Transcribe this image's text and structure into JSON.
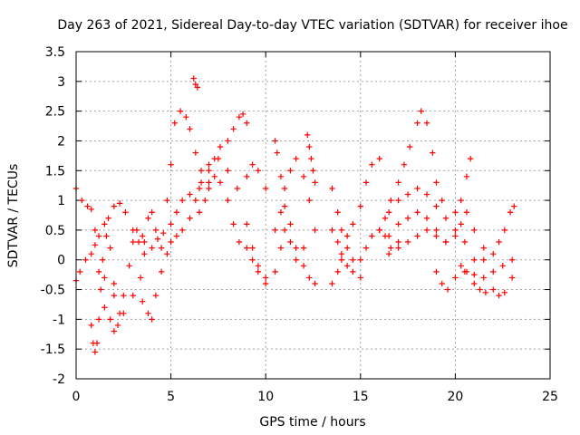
{
  "chart_data": {
    "type": "scatter",
    "title": "Day 263 of 2021, Sidereal Day-to-day VTEC variation (SDTVAR) for receiver ihoe",
    "xlabel": "GPS time / hours",
    "ylabel": "SDTVAR / TECUs",
    "xlim": [
      0,
      25
    ],
    "ylim": [
      -2,
      3.5
    ],
    "xticks": [
      0,
      5,
      10,
      15,
      20,
      25
    ],
    "yticks": [
      -2,
      -1.5,
      -1,
      -0.5,
      0,
      0.5,
      1,
      1.5,
      2,
      2.5,
      3,
      3.5
    ],
    "grid": true,
    "marker": "+",
    "color": "#ff0000",
    "series": [
      {
        "name": "s1",
        "x": [
          0.0,
          0.3,
          0.6,
          0.8,
          1.0,
          1.2,
          1.5,
          1.8,
          2.0,
          2.2,
          2.5,
          2.8,
          3.0,
          3.2,
          3.5
        ],
        "y": [
          1.2,
          1.0,
          0.9,
          0.85,
          0.5,
          -0.2,
          -0.8,
          -1.0,
          -1.2,
          -1.1,
          -0.6,
          -0.1,
          0.3,
          0.5,
          0.4
        ]
      },
      {
        "name": "s2",
        "x": [
          0.0,
          0.2,
          0.5,
          0.8,
          1.0,
          1.2,
          1.5,
          1.7,
          2.0,
          2.3,
          2.6,
          3.0,
          3.3,
          3.6,
          4.0,
          4.3,
          4.6,
          5.0,
          5.3,
          5.6,
          6.0,
          6.5,
          7.0
        ],
        "y": [
          -0.35,
          -0.2,
          0.0,
          0.1,
          0.25,
          0.4,
          0.6,
          0.7,
          0.9,
          0.95,
          0.8,
          0.5,
          0.3,
          0.1,
          0.2,
          0.35,
          0.45,
          0.6,
          0.8,
          1.0,
          1.1,
          1.2,
          1.3
        ]
      },
      {
        "name": "s3",
        "x": [
          0.8,
          0.9,
          1.0,
          1.1,
          1.2,
          1.3,
          1.4,
          1.6,
          1.8,
          2.0,
          2.3
        ],
        "y": [
          -1.1,
          -1.4,
          -1.55,
          -1.4,
          -1.0,
          -0.5,
          0.0,
          0.4,
          0.2,
          -0.4,
          -0.9
        ]
      },
      {
        "name": "s4",
        "x": [
          1.5,
          2.0,
          2.5,
          3.0,
          3.4,
          3.6,
          3.8,
          4.0,
          4.2,
          4.5,
          4.8,
          5.0,
          5.2,
          5.5,
          5.8,
          6.0,
          6.3,
          6.6,
          7.0,
          7.3,
          7.6,
          8.0,
          8.3,
          8.6,
          8.8,
          9.0
        ],
        "y": [
          -0.3,
          -0.6,
          -0.9,
          -0.6,
          -0.3,
          0.3,
          0.7,
          0.8,
          0.5,
          0.2,
          1.0,
          1.6,
          2.3,
          2.5,
          2.4,
          2.2,
          1.8,
          1.5,
          1.5,
          1.7,
          1.9,
          2.0,
          2.2,
          2.4,
          2.45,
          2.3
        ]
      },
      {
        "name": "s5",
        "x": [
          3.5,
          3.8,
          4.0,
          4.2,
          4.5,
          4.8,
          5.0,
          5.3,
          5.6,
          6.0,
          6.3,
          6.6,
          7.0,
          7.5,
          8.0,
          8.5,
          9.0,
          9.3,
          9.6,
          10.0
        ],
        "y": [
          -0.7,
          -0.9,
          -1.0,
          -0.6,
          -0.2,
          0.1,
          0.3,
          0.4,
          0.5,
          0.7,
          1.0,
          1.3,
          1.6,
          1.7,
          1.5,
          1.2,
          0.6,
          0.2,
          -0.1,
          -0.3
        ]
      },
      {
        "name": "s6",
        "x": [
          6.2,
          6.3,
          6.4
        ],
        "y": [
          3.05,
          2.95,
          2.9
        ]
      },
      {
        "name": "s7",
        "x": [
          6.5,
          6.8,
          7.0,
          7.3,
          7.6,
          8.0,
          8.3,
          8.6,
          9.0,
          9.3,
          9.6,
          10.0
        ],
        "y": [
          0.8,
          1.0,
          1.2,
          1.4,
          1.3,
          1.0,
          0.6,
          0.3,
          0.2,
          0.0,
          -0.2,
          -0.4
        ]
      },
      {
        "name": "s8",
        "x": [
          9.0,
          9.3,
          9.6,
          10.0
        ],
        "y": [
          1.4,
          1.6,
          1.5,
          1.2
        ]
      },
      {
        "name": "s9",
        "x": [
          10.5,
          10.6,
          10.8,
          11.0,
          11.3,
          11.6,
          12.0,
          12.3,
          12.6
        ],
        "y": [
          2.0,
          1.8,
          1.4,
          0.9,
          0.6,
          0.2,
          -0.1,
          -0.3,
          -0.4
        ]
      },
      {
        "name": "s10",
        "x": [
          10.5,
          10.8,
          11.0,
          11.3,
          11.6,
          12.0,
          12.3,
          12.6
        ],
        "y": [
          0.5,
          0.8,
          1.2,
          1.5,
          1.7,
          1.4,
          1.0,
          0.5
        ]
      },
      {
        "name": "s11",
        "x": [
          10.5,
          10.8,
          11.0,
          11.3,
          11.6,
          12.0
        ],
        "y": [
          -0.2,
          0.2,
          0.5,
          0.3,
          0.0,
          0.2
        ]
      },
      {
        "name": "s12",
        "x": [
          12.2,
          12.3,
          12.4,
          12.5,
          12.6
        ],
        "y": [
          2.1,
          1.9,
          1.7,
          1.5,
          1.3
        ]
      },
      {
        "name": "s13",
        "x": [
          13.5,
          13.8,
          14.0,
          14.3,
          14.6,
          15.0,
          15.3,
          15.6,
          16.0
        ],
        "y": [
          1.2,
          0.8,
          0.5,
          0.4,
          0.6,
          0.9,
          1.3,
          1.6,
          1.7
        ]
      },
      {
        "name": "s14",
        "x": [
          13.5,
          13.8,
          14.0,
          14.3,
          14.6,
          15.0,
          15.3,
          15.6,
          16.0,
          16.3,
          16.6,
          17.0
        ],
        "y": [
          0.5,
          0.3,
          0.0,
          -0.1,
          -0.2,
          0.0,
          0.2,
          0.4,
          0.5,
          0.4,
          0.2,
          0.3
        ]
      },
      {
        "name": "s15",
        "x": [
          13.5,
          13.8,
          14.0,
          14.3,
          14.6,
          15.0
        ],
        "y": [
          -0.4,
          -0.2,
          0.1,
          0.2,
          0.0,
          -0.3
        ]
      },
      {
        "name": "s16",
        "x": [
          16.0,
          16.3,
          16.6,
          17.0,
          17.3,
          17.6,
          18.0,
          18.2,
          18.5,
          18.8,
          19.0,
          19.3
        ],
        "y": [
          0.5,
          0.7,
          1.0,
          1.3,
          1.6,
          1.9,
          2.3,
          2.5,
          2.3,
          1.8,
          1.3,
          1.0
        ]
      },
      {
        "name": "s17",
        "x": [
          16.5,
          17.0,
          17.5,
          18.0,
          18.5,
          19.0,
          19.5,
          20.0,
          20.3,
          20.6,
          20.8
        ],
        "y": [
          0.8,
          1.0,
          1.1,
          1.2,
          1.1,
          0.9,
          0.7,
          0.8,
          1.0,
          1.4,
          1.7
        ]
      },
      {
        "name": "s18",
        "x": [
          16.5,
          17.0,
          17.5,
          18.0,
          18.5,
          19.0,
          19.5,
          20.0,
          20.3,
          20.6,
          21.0,
          21.5
        ],
        "y": [
          0.4,
          0.6,
          0.7,
          0.8,
          0.7,
          0.5,
          0.3,
          0.4,
          0.6,
          0.8,
          0.5,
          0.2
        ]
      },
      {
        "name": "s19",
        "x": [
          16.5,
          17.0,
          17.5,
          18.0,
          18.5,
          19.0,
          19.5,
          20.0,
          20.5,
          21.0
        ],
        "y": [
          0.1,
          0.2,
          0.3,
          0.4,
          0.5,
          0.4,
          0.3,
          0.5,
          0.3,
          0.0
        ]
      },
      {
        "name": "s20",
        "x": [
          19.0,
          19.3,
          19.6,
          20.0,
          20.3,
          20.6,
          21.0,
          21.3,
          21.6,
          22.0,
          22.3,
          22.6,
          23.0
        ],
        "y": [
          -0.2,
          -0.4,
          -0.5,
          -0.3,
          -0.1,
          -0.2,
          -0.4,
          -0.5,
          -0.55,
          -0.5,
          -0.6,
          -0.55,
          -0.3
        ]
      },
      {
        "name": "s21",
        "x": [
          20.5,
          21.0,
          21.5,
          22.0,
          22.5,
          23.0
        ],
        "y": [
          -0.2,
          -0.25,
          -0.3,
          -0.2,
          -0.1,
          0.0
        ]
      },
      {
        "name": "s22",
        "x": [
          21.5,
          22.0,
          22.3,
          22.6,
          22.9,
          23.1
        ],
        "y": [
          0.0,
          0.1,
          0.3,
          0.5,
          0.8,
          0.9
        ]
      }
    ]
  }
}
